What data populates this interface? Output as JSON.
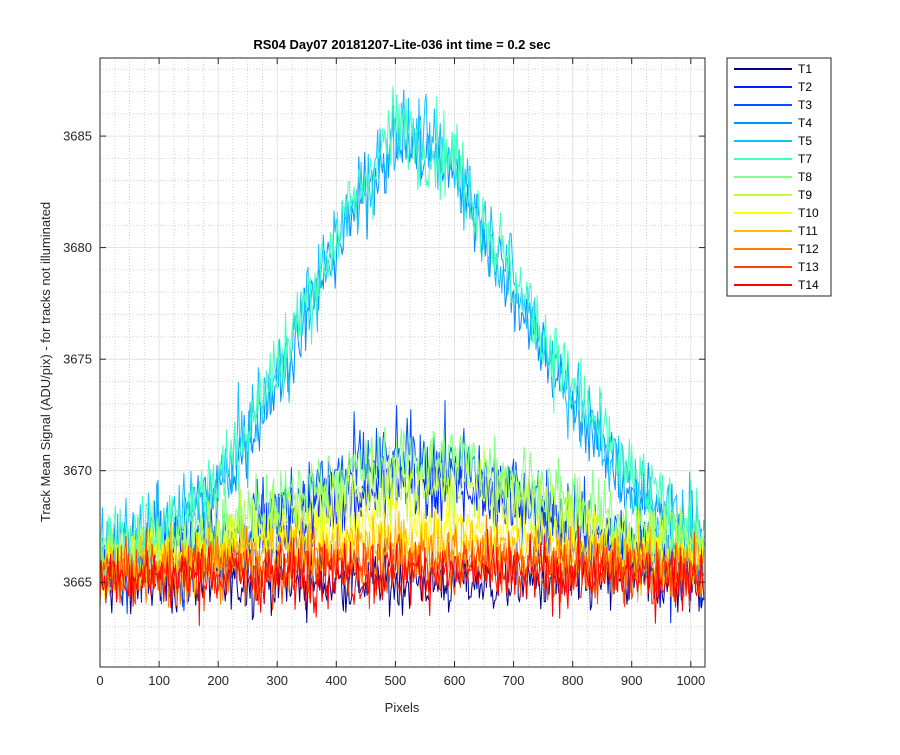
{
  "chart_data": {
    "type": "line",
    "title": "RS04 Day07 20181207-Lite-036 int time = 0.2 sec",
    "xlabel": "Pixels",
    "ylabel": "Track Mean Signal (ADU/pix) - for tracks not illuminated",
    "xlim": [
      0,
      1024
    ],
    "ylim": [
      3661.2,
      3688.5
    ],
    "xticks": [
      0,
      100,
      200,
      300,
      400,
      500,
      600,
      700,
      800,
      900,
      1000
    ],
    "yticks": [
      3665,
      3670,
      3675,
      3680,
      3685
    ],
    "grid": "on, with minor grid",
    "legend_position": "outside right, top",
    "profile_x": [
      0,
      100,
      200,
      300,
      400,
      500,
      600,
      700,
      800,
      900,
      1024
    ],
    "series": [
      {
        "name": "T1",
        "color": "#00008f",
        "profile": [
          3665.0,
          3665.0,
          3665.0,
          3665.0,
          3665.0,
          3665.0,
          3665.0,
          3665.0,
          3665.0,
          3665.0,
          3665.0
        ],
        "noise": 1.0
      },
      {
        "name": "T2",
        "color": "#0020ff",
        "profile": [
          3665.3,
          3665.6,
          3666.3,
          3667.4,
          3668.7,
          3669.5,
          3669.3,
          3668.5,
          3667.2,
          3666.2,
          3665.6
        ],
        "noise": 1.2
      },
      {
        "name": "T3",
        "color": "#0050ff",
        "profile": [
          3665.5,
          3666.0,
          3667.0,
          3668.3,
          3669.8,
          3670.5,
          3670.2,
          3669.2,
          3667.8,
          3666.6,
          3665.9
        ],
        "noise": 1.3
      },
      {
        "name": "T4",
        "color": "#0090ff",
        "profile": [
          3666.0,
          3667.0,
          3669.0,
          3674.0,
          3680.0,
          3685.0,
          3683.5,
          3678.0,
          3673.0,
          3669.0,
          3666.5
        ],
        "noise": 1.2
      },
      {
        "name": "T5",
        "color": "#10c0ff",
        "profile": [
          3666.2,
          3667.2,
          3669.3,
          3674.3,
          3680.3,
          3685.3,
          3683.8,
          3678.3,
          3673.3,
          3669.3,
          3666.8
        ],
        "noise": 1.3
      },
      {
        "name": "T7",
        "color": "#40ffbf",
        "profile": [
          3666.4,
          3667.4,
          3669.6,
          3674.6,
          3680.6,
          3685.5,
          3684.0,
          3678.6,
          3673.6,
          3669.6,
          3667.0
        ],
        "noise": 1.3
      },
      {
        "name": "T8",
        "color": "#80ff80",
        "profile": [
          3666.0,
          3666.6,
          3667.5,
          3668.5,
          3669.8,
          3670.5,
          3670.6,
          3669.8,
          3668.6,
          3667.4,
          3666.5
        ],
        "noise": 1.1
      },
      {
        "name": "T9",
        "color": "#bfff40",
        "profile": [
          3665.9,
          3666.3,
          3667.0,
          3667.8,
          3668.6,
          3669.2,
          3669.3,
          3668.7,
          3667.9,
          3667.0,
          3666.3
        ],
        "noise": 1.1
      },
      {
        "name": "T10",
        "color": "#ffff00",
        "profile": [
          3665.8,
          3666.1,
          3666.5,
          3666.9,
          3667.3,
          3667.6,
          3667.6,
          3667.2,
          3666.8,
          3666.4,
          3666.0
        ],
        "noise": 1.0
      },
      {
        "name": "T11",
        "color": "#ffbf00",
        "profile": [
          3665.6,
          3665.8,
          3666.1,
          3666.3,
          3666.6,
          3666.7,
          3666.7,
          3666.5,
          3666.2,
          3665.9,
          3665.7
        ],
        "noise": 1.0
      },
      {
        "name": "T12",
        "color": "#ff8000",
        "profile": [
          3665.4,
          3665.5,
          3665.7,
          3665.9,
          3666.1,
          3666.2,
          3666.2,
          3666.0,
          3665.8,
          3665.6,
          3665.5
        ],
        "noise": 1.0
      },
      {
        "name": "T13",
        "color": "#ff4000",
        "profile": [
          3665.4,
          3665.4,
          3665.5,
          3665.6,
          3665.7,
          3665.8,
          3665.8,
          3665.7,
          3665.6,
          3665.5,
          3665.4
        ],
        "noise": 1.0
      },
      {
        "name": "T14",
        "color": "#ff0000",
        "profile": [
          3665.3,
          3665.3,
          3665.3,
          3665.3,
          3665.4,
          3665.4,
          3665.4,
          3665.3,
          3665.3,
          3665.3,
          3665.3
        ],
        "noise": 1.0
      }
    ]
  }
}
